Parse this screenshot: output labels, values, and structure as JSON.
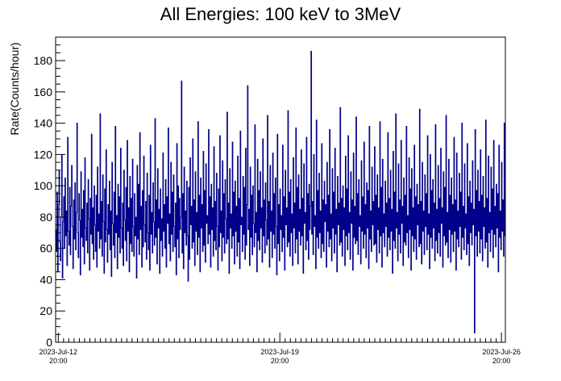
{
  "chart_data": {
    "type": "line",
    "title": "All Energies:  100 keV to 3MeV",
    "ylabel": "Rate(Counts/hour)",
    "xlabel": "",
    "ylim": [
      0,
      195
    ],
    "y_ticks": [
      0,
      20,
      40,
      60,
      80,
      100,
      120,
      140,
      160,
      180
    ],
    "x_range": [
      "2023-07-12T18:00",
      "2023-07-26T23:00"
    ],
    "x_ticks": [
      {
        "line1": "2023-Jul-12",
        "line2": "20:00",
        "at": "2023-07-12T20:00"
      },
      {
        "line1": "2023-Jul-19",
        "line2": "20:00",
        "at": "2023-07-19T20:00"
      },
      {
        "line1": "2023-Jul-26",
        "line2": "20:00",
        "at": "2023-07-26T20:00"
      }
    ],
    "grid": false,
    "line_color": "#00008b",
    "series": [
      {
        "values": [
          72,
          58,
          96,
          45,
          88,
          110,
          64,
          52,
          80,
          120,
          41,
          77,
          93,
          60,
          105,
          68,
          84,
          49,
          131,
          71,
          62,
          99,
          56,
          87,
          113,
          74,
          47,
          91,
          66,
          102,
          59,
          83,
          140,
          70,
          54,
          95,
          78,
          43,
          109,
          67,
          85,
          61,
          97,
          50,
          118,
          73,
          65,
          89,
          57,
          104,
          79,
          46,
          92,
          69,
          133,
          63,
          86,
          53,
          100,
          75,
          58,
          94,
          48,
          112,
          71,
          82,
          60,
          146,
          66,
          90,
          55,
          107,
          77,
          44,
          98,
          64,
          123,
          72,
          51,
          88,
          69,
          103,
          59,
          84,
          42,
          115,
          76,
          62,
          96,
          54,
          138,
          70,
          81,
          47,
          101,
          67,
          93,
          57,
          124,
          73,
          60,
          89,
          49,
          110,
          78,
          65,
          99,
          52,
          129,
          71,
          86,
          45,
          106,
          63,
          92,
          58,
          117,
          74,
          55,
          95,
          68,
          80,
          41,
          113,
          66,
          101,
          56,
          134,
          72,
          87,
          48,
          97,
          61,
          119,
          75,
          64,
          90,
          53,
          108,
          70,
          59,
          94,
          46,
          126,
          69,
          83,
          57,
          102,
          77,
          62,
          143,
          67,
          91,
          50,
          111,
          73,
          85,
          44,
          98,
          65,
          79,
          55,
          121,
          71,
          88,
          60,
          104,
          48,
          93,
          76,
          137,
          63,
          82,
          52,
          115,
          69,
          96,
          58,
          107,
          74,
          61,
          89,
          43,
          127,
          66,
          100,
          54,
          92,
          72,
          80,
          167,
          57,
          95,
          47,
          112,
          70,
          84,
          62,
          103,
          68,
          39,
          99,
          53,
          118,
          75,
          87,
          60,
          130,
          64,
          91,
          49,
          109,
          71,
          83,
          56,
          141,
          67,
          94,
          45,
          105,
          73,
          88,
          58,
          122,
          62,
          97,
          51,
          114,
          76,
          81,
          63,
          136,
          69,
          93,
          48,
          101,
          72,
          86,
          55,
          125,
          65,
          90,
          59,
          108,
          74,
          46,
          98,
          61,
          132,
          70,
          84,
          52,
          116,
          67,
          95,
          57,
          104,
          79,
          63,
          147,
          66,
          89,
          44,
          111,
          73,
          82,
          60,
          128,
          68,
          96,
          50,
          103,
          71,
          87,
          55,
          119,
          64,
          92,
          47,
          135,
          75,
          80,
          58,
          106,
          69,
          99,
          53,
          124,
          62,
          88,
          164,
          72,
          85,
          49,
          112,
          67,
          94,
          56,
          100,
          76,
          61,
          139,
          70,
          83,
          45,
          117,
          65,
          97,
          59,
          109,
          73,
          86,
          51,
          130,
          68,
          91,
          57,
          102,
          78,
          62,
          145,
          66,
          90,
          48,
          113,
          71,
          84,
          54,
          121,
          69,
          95,
          60,
          105,
          74,
          43,
          133,
          63,
          88,
          52,
          98,
          72,
          81,
          58,
          126,
          67,
          93,
          46,
          110,
          75,
          86,
          61,
          148,
          64,
          96,
          55,
          104,
          70,
          82,
          49,
          118,
          73,
          89,
          57,
          137,
          66,
          99,
          50,
          107,
          71,
          85,
          62,
          123,
          68,
          92,
          44,
          114,
          76,
          83,
          59,
          131,
          65,
          95,
          53,
          101,
          72,
          87,
          186,
          69,
          90,
          56,
          120,
          74,
          81,
          47,
          142,
          67,
          97,
          60,
          108,
          70,
          84,
          54,
          127,
          63,
          91,
          58,
          103,
          77,
          88,
          48,
          115,
          71,
          94,
          61,
          136,
          66,
          82,
          52,
          111,
          73,
          96,
          57,
          124,
          69,
          85,
          45,
          106,
          75,
          89,
          62,
          150,
          64,
          92,
          55,
          100,
          72,
          86,
          49,
          119,
          68,
          98,
          59,
          132,
          70,
          83,
          53,
          109,
          76,
          91,
          46,
          121,
          67,
          87,
          63,
          144,
          65,
          95,
          56,
          104,
          74,
          81,
          50,
          116,
          71,
          93,
          60,
          128,
          69,
          88,
          54,
          102,
          73,
          97,
          47,
          138,
          66,
          84,
          58,
          112,
          75,
          90,
          62,
          125,
          63,
          94,
          51,
          107,
          72,
          86,
          57,
          141,
          68,
          99,
          48,
          117,
          70,
          82,
          61,
          103,
          74,
          89,
          55,
          134,
          67,
          92,
          59,
          110,
          71,
          85,
          44,
          122,
          65,
          96,
          60,
          146,
          73,
          83,
          52,
          114,
          69,
          91,
          57,
          129,
          76,
          87,
          49,
          105,
          64,
          94,
          62,
          138,
          70,
          81,
          54,
          118,
          72,
          98,
          46,
          111,
          68,
          86,
          58,
          126,
          66,
          93,
          53,
          101,
          75,
          88,
          61,
          149,
          63,
          90,
          50,
          115,
          71,
          84,
          56,
          107,
          74,
          95,
          59,
          132,
          69,
          82,
          47,
          120,
          67,
          97,
          60,
          104,
          73,
          89,
          52,
          139,
          65,
          85,
          57,
          113,
          70,
          92,
          55,
          124,
          76,
          86,
          48,
          109,
          68,
          99,
          62,
          145,
          64,
          83,
          54,
          117,
          72,
          94,
          51,
          105,
          69,
          88,
          58,
          131,
          71,
          91,
          46,
          121,
          66,
          84,
          61,
          108,
          74,
          96,
          53,
          140,
          67,
          87,
          59,
          114,
          73,
          82,
          56,
          127,
          63,
          93,
          49,
          103,
          70,
          89,
          62,
          116,
          75,
          85,
          6,
          136,
          68,
          97,
          55,
          110,
          71,
          90,
          57,
          123,
          66,
          94,
          52,
          106,
          74,
          86,
          60,
          142,
          64,
          92,
          48,
          119,
          70,
          83,
          58,
          112,
          72,
          98,
          54,
          129,
          69,
          87,
          61,
          101,
          73,
          95,
          45,
          126,
          67,
          84,
          59,
          115,
          71,
          91,
          55,
          140,
          68
        ]
      }
    ]
  }
}
